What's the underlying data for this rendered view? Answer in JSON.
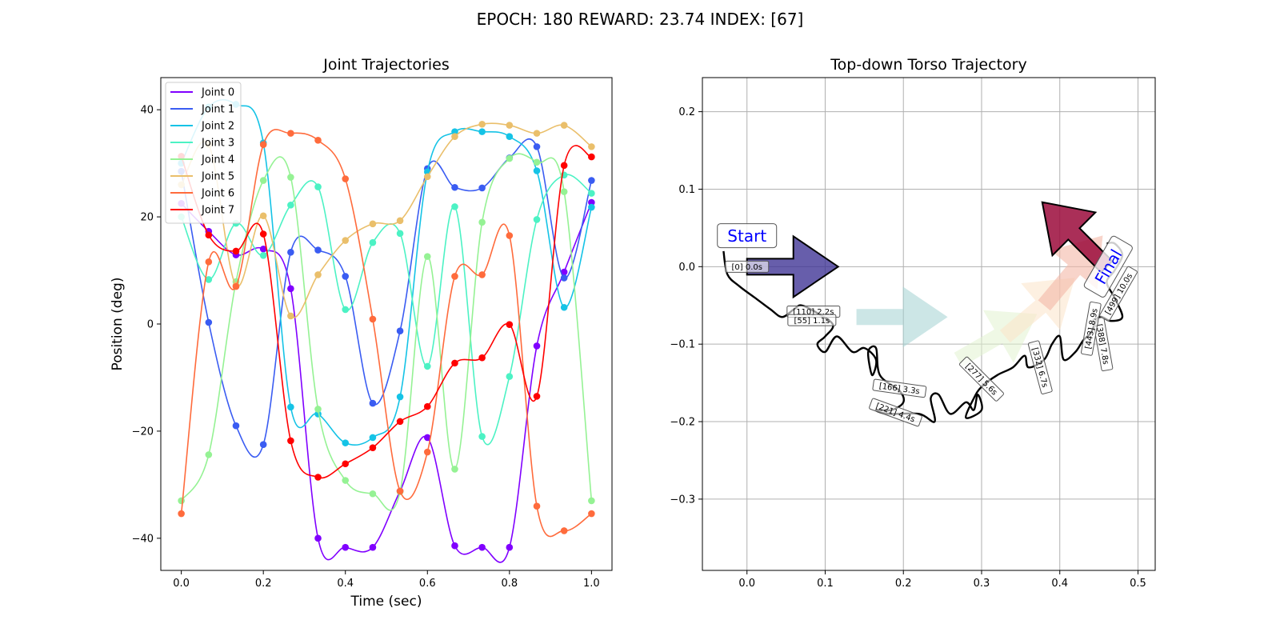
{
  "suptitle": "EPOCH: 180 REWARD:  23.74 INDEX: [67]",
  "chart_data": [
    {
      "type": "line",
      "title": "Joint Trajectories",
      "xlabel": "Time (sec)",
      "ylabel": "Position (deg)",
      "xlim": [
        -0.05,
        1.05
      ],
      "ylim": [
        -46,
        46
      ],
      "xticks": [
        0.0,
        0.2,
        0.4,
        0.6,
        0.8,
        1.0
      ],
      "xtick_labels": [
        "0.0",
        "0.2",
        "0.4",
        "0.6",
        "0.8",
        "1.0"
      ],
      "yticks": [
        -40,
        -20,
        0,
        20,
        40
      ],
      "ytick_labels": [
        "−40",
        "−20",
        "0",
        "20",
        "40"
      ],
      "grid": false,
      "legend": "top-left",
      "x": [
        0.0,
        0.0667,
        0.1333,
        0.2,
        0.2667,
        0.3333,
        0.4,
        0.4667,
        0.5333,
        0.6,
        0.6667,
        0.7333,
        0.8,
        0.8667,
        0.9333,
        1.0
      ],
      "series": [
        {
          "name": "Joint 0",
          "color": "#8000ff",
          "values": [
            22.5,
            17.3,
            12.9,
            14.0,
            6.6,
            -40.0,
            -41.7,
            -41.7,
            -31.2,
            -21.2,
            -41.4,
            -41.7,
            -41.7,
            -4.1,
            9.7,
            22.7
          ]
        },
        {
          "name": "Joint 1",
          "color": "#3a5cf2",
          "values": [
            28.5,
            0.3,
            -19.0,
            -22.5,
            13.4,
            13.8,
            8.9,
            -14.8,
            -1.3,
            29.0,
            25.5,
            25.4,
            31.0,
            33.1,
            8.6,
            26.8
          ]
        },
        {
          "name": "Joint 2",
          "color": "#15c3e6",
          "values": [
            30.0,
            40.5,
            41.0,
            33.8,
            -15.5,
            -16.8,
            -22.2,
            -21.2,
            -13.6,
            28.4,
            35.9,
            35.9,
            35.0,
            28.6,
            3.1,
            21.8
          ]
        },
        {
          "name": "Joint 3",
          "color": "#4cf2c4",
          "values": [
            20.0,
            8.3,
            18.8,
            12.8,
            22.2,
            25.6,
            2.7,
            15.2,
            16.9,
            -7.9,
            21.9,
            -21.0,
            -9.8,
            19.5,
            27.8,
            24.4
          ]
        },
        {
          "name": "Joint 4",
          "color": "#95f294",
          "values": [
            -33.0,
            -24.4,
            7.9,
            26.8,
            27.4,
            -15.9,
            -29.2,
            -31.7,
            -31.3,
            12.6,
            -27.1,
            19.0,
            30.9,
            30.2,
            24.7,
            -33.0
          ]
        },
        {
          "name": "Joint 5",
          "color": "#eabf6b",
          "values": [
            26.0,
            33.5,
            7.2,
            20.2,
            1.5,
            9.2,
            15.6,
            18.7,
            19.3,
            27.5,
            35.0,
            37.3,
            37.1,
            35.6,
            37.1,
            33.1
          ]
        },
        {
          "name": "Joint 6",
          "color": "#ff6b3c",
          "values": [
            -35.4,
            11.6,
            7.0,
            33.5,
            35.6,
            34.3,
            27.1,
            0.9,
            -31.2,
            -23.9,
            8.9,
            9.2,
            16.5,
            -34.0,
            -38.6,
            -35.4
          ]
        },
        {
          "name": "Joint 7",
          "color": "#ff0000",
          "values": [
            31.3,
            16.6,
            13.6,
            16.8,
            -21.8,
            -28.6,
            -26.1,
            -23.1,
            -18.2,
            -15.4,
            -7.3,
            -6.3,
            -0.1,
            -13.5,
            29.6,
            31.2
          ]
        }
      ]
    },
    {
      "type": "scatter",
      "title": "Top-down Torso Trajectory",
      "xlabel": "",
      "ylabel": "",
      "xlim": [
        -0.057,
        0.522
      ],
      "ylim": [
        -0.392,
        0.244
      ],
      "xticks": [
        0.0,
        0.1,
        0.2,
        0.3,
        0.4,
        0.5
      ],
      "xtick_labels": [
        "0.0",
        "0.1",
        "0.2",
        "0.3",
        "0.4",
        "0.5"
      ],
      "yticks": [
        -0.3,
        -0.2,
        -0.1,
        0.0,
        0.1,
        0.2
      ],
      "ytick_labels": [
        "−0.3",
        "−0.2",
        "−0.1",
        "0.0",
        "0.1",
        "0.2"
      ],
      "grid": true,
      "path": [
        [
          -0.03,
          0.02
        ],
        [
          -0.025,
          -0.01
        ],
        [
          -0.01,
          -0.025
        ],
        [
          0.01,
          -0.04
        ],
        [
          0.03,
          -0.055
        ],
        [
          0.045,
          -0.065
        ],
        [
          0.06,
          -0.055
        ],
        [
          0.07,
          -0.05
        ],
        [
          0.09,
          -0.06
        ],
        [
          0.11,
          -0.075
        ],
        [
          0.1,
          -0.09
        ],
        [
          0.09,
          -0.1
        ],
        [
          0.1,
          -0.11
        ],
        [
          0.115,
          -0.09
        ],
        [
          0.135,
          -0.11
        ],
        [
          0.15,
          -0.105
        ],
        [
          0.165,
          -0.12
        ],
        [
          0.16,
          -0.14
        ],
        [
          0.155,
          -0.11
        ],
        [
          0.165,
          -0.105
        ],
        [
          0.17,
          -0.14
        ],
        [
          0.195,
          -0.16
        ],
        [
          0.2,
          -0.175
        ],
        [
          0.185,
          -0.185
        ],
        [
          0.165,
          -0.185
        ],
        [
          0.18,
          -0.19
        ],
        [
          0.22,
          -0.19
        ],
        [
          0.24,
          -0.2
        ],
        [
          0.235,
          -0.17
        ],
        [
          0.245,
          -0.165
        ],
        [
          0.26,
          -0.19
        ],
        [
          0.28,
          -0.175
        ],
        [
          0.29,
          -0.185
        ],
        [
          0.295,
          -0.165
        ],
        [
          0.3,
          -0.185
        ],
        [
          0.28,
          -0.195
        ],
        [
          0.29,
          -0.17
        ],
        [
          0.3,
          -0.155
        ],
        [
          0.32,
          -0.14
        ],
        [
          0.34,
          -0.13
        ],
        [
          0.355,
          -0.115
        ],
        [
          0.36,
          -0.13
        ],
        [
          0.38,
          -0.12
        ],
        [
          0.39,
          -0.1
        ],
        [
          0.4,
          -0.09
        ],
        [
          0.405,
          -0.12
        ],
        [
          0.42,
          -0.11
        ],
        [
          0.43,
          -0.095
        ],
        [
          0.44,
          -0.085
        ],
        [
          0.45,
          -0.065
        ],
        [
          0.465,
          -0.07
        ],
        [
          0.48,
          -0.065
        ],
        [
          0.47,
          -0.04
        ],
        [
          0.46,
          -0.02
        ],
        [
          0.47,
          -0.005
        ],
        [
          0.48,
          0.015
        ],
        [
          0.47,
          0.03
        ],
        [
          0.46,
          0.03
        ]
      ],
      "arrows": [
        {
          "x": 0.0,
          "y": 0.0,
          "angle_deg": 0,
          "color": "#3c3194",
          "alpha": 0.78
        },
        {
          "x": 0.14,
          "y": -0.065,
          "angle_deg": 0,
          "color": "#a3d1d1",
          "alpha": 0.55
        },
        {
          "x": 0.27,
          "y": -0.12,
          "angle_deg": 30,
          "color": "#e2f3cf",
          "alpha": 0.55
        },
        {
          "x": 0.33,
          "y": -0.09,
          "angle_deg": 40,
          "color": "#fbe3c8",
          "alpha": 0.55
        },
        {
          "x": 0.38,
          "y": -0.05,
          "angle_deg": 50,
          "color": "#f3b7a6",
          "alpha": 0.6
        },
        {
          "x": 0.46,
          "y": 0.0,
          "angle_deg": 135,
          "color": "#9b0b3b",
          "alpha": 0.85
        }
      ],
      "annotations": [
        {
          "text": "Start",
          "x": 0.0,
          "y": 0.04,
          "angle": 0,
          "size": "big"
        },
        {
          "text": "[0] 0.0s",
          "x": 0.0,
          "y": 0.0,
          "angle": 0,
          "size": "small"
        },
        {
          "text": "[110] 2.2s",
          "x": 0.085,
          "y": -0.058,
          "angle": 0,
          "size": "small"
        },
        {
          "text": "[55] 1.1s",
          "x": 0.083,
          "y": -0.069,
          "angle": 0,
          "size": "small"
        },
        {
          "text": "[166] 3.3s",
          "x": 0.195,
          "y": -0.157,
          "angle": -8,
          "size": "small"
        },
        {
          "text": "[221] 4.4s",
          "x": 0.19,
          "y": -0.188,
          "angle": -20,
          "size": "small"
        },
        {
          "text": "[277] 5.6s",
          "x": 0.3,
          "y": -0.145,
          "angle": -45,
          "size": "small"
        },
        {
          "text": "[332] 6.7s",
          "x": 0.375,
          "y": -0.13,
          "angle": -75,
          "size": "small"
        },
        {
          "text": "[388] 7.8s",
          "x": 0.455,
          "y": -0.1,
          "angle": -80,
          "size": "small"
        },
        {
          "text": "[443] 8.9s",
          "x": 0.44,
          "y": -0.08,
          "angle": 80,
          "size": "small"
        },
        {
          "text": "[499] 10.0s",
          "x": 0.475,
          "y": -0.035,
          "angle": 60,
          "size": "small"
        },
        {
          "text": "Final",
          "x": 0.462,
          "y": 0.0,
          "angle": 60,
          "size": "big"
        }
      ]
    }
  ]
}
